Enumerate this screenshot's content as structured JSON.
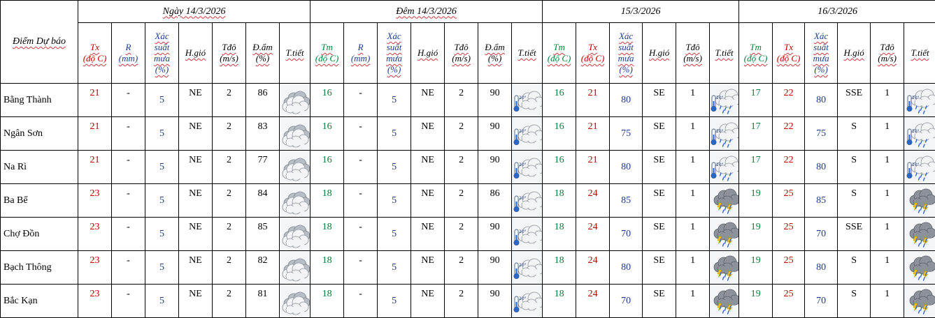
{
  "header": {
    "location": "Điểm Dự báo",
    "periods": [
      "Ngày 14/3/2026",
      "Đêm 14/3/2026",
      "15/3/2026",
      "16/3/2026"
    ]
  },
  "columns": {
    "day": [
      {
        "l1": "Tx",
        "l2": "(độ C)",
        "color": "#c00000"
      },
      {
        "l1": "R",
        "l2": "(mm)",
        "color": "#1f3b8f"
      },
      {
        "l1": "Xác",
        "l2": "suất",
        "l3": "mưa",
        "l4": "(%)",
        "color": "#1f3b8f"
      },
      {
        "l1": "H.gió",
        "color": "#000000"
      },
      {
        "l1": "Tđô",
        "l2": "(m/s)",
        "color": "#000000"
      },
      {
        "l1": "Đ.ẩm",
        "l2": "(%)",
        "color": "#000000"
      },
      {
        "l1": "T.tiết",
        "color": "#000000"
      }
    ],
    "night": [
      {
        "l1": "Tm",
        "l2": "(độ C)",
        "color": "#00803c"
      },
      {
        "l1": "R",
        "l2": "(mm)",
        "color": "#1f3b8f"
      },
      {
        "l1": "Xác",
        "l2": "suất",
        "l3": "mưa",
        "l4": "(%)",
        "color": "#1f3b8f"
      },
      {
        "l1": "H.gió",
        "color": "#000000"
      },
      {
        "l1": "Tđô",
        "l2": "(m/s)",
        "color": "#000000"
      },
      {
        "l1": "Đ.ẩm",
        "l2": "(%)",
        "color": "#000000"
      },
      {
        "l1": "T.tiết",
        "color": "#000000"
      }
    ],
    "ext": [
      {
        "l1": "Tm",
        "l2": "(độ C)",
        "color": "#00803c"
      },
      {
        "l1": "Tx",
        "l2": "(độ C)",
        "color": "#c00000"
      },
      {
        "l1": "Xác",
        "l2": "suất",
        "l3": "mưa",
        "l4": "(%)",
        "color": "#1f3b8f"
      },
      {
        "l1": "H.gió",
        "color": "#000000"
      },
      {
        "l1": "Tđô",
        "l2": "(m/s)",
        "color": "#000000"
      },
      {
        "l1": "T.tiết",
        "color": "#000000"
      }
    ]
  },
  "rows": [
    {
      "name": "Bằng Thành",
      "d": {
        "tx": "21",
        "r": "-",
        "pop": "5",
        "wind": "NE",
        "speed": "2",
        "hum": "86",
        "icon": "cloudy-icon"
      },
      "n": {
        "tm": "16",
        "r": "-",
        "pop": "5",
        "wind": "NE",
        "speed": "2",
        "hum": "90",
        "icon": "cloudy-cool-icon"
      },
      "d15": {
        "tm": "16",
        "tx": "21",
        "pop": "80",
        "wind": "SE",
        "speed": "1",
        "icon": "showers-cool-icon"
      },
      "d16": {
        "tm": "17",
        "tx": "22",
        "pop": "80",
        "wind": "SSE",
        "speed": "1",
        "icon": "showers-cool-icon"
      }
    },
    {
      "name": "Ngân Sơn",
      "d": {
        "tx": "21",
        "r": "-",
        "pop": "5",
        "wind": "NE",
        "speed": "2",
        "hum": "83",
        "icon": "cloudy-icon"
      },
      "n": {
        "tm": "16",
        "r": "-",
        "pop": "5",
        "wind": "NE",
        "speed": "2",
        "hum": "90",
        "icon": "cloudy-cool-icon"
      },
      "d15": {
        "tm": "16",
        "tx": "21",
        "pop": "75",
        "wind": "SE",
        "speed": "1",
        "icon": "showers-cool-icon"
      },
      "d16": {
        "tm": "17",
        "tx": "22",
        "pop": "75",
        "wind": "S",
        "speed": "1",
        "icon": "showers-cool-icon"
      }
    },
    {
      "name": "Na Rì",
      "d": {
        "tx": "21",
        "r": "-",
        "pop": "5",
        "wind": "NE",
        "speed": "2",
        "hum": "77",
        "icon": "cloudy-icon"
      },
      "n": {
        "tm": "16",
        "r": "-",
        "pop": "5",
        "wind": "NE",
        "speed": "2",
        "hum": "90",
        "icon": "cloudy-cool-icon"
      },
      "d15": {
        "tm": "16",
        "tx": "21",
        "pop": "80",
        "wind": "SE",
        "speed": "1",
        "icon": "showers-cool-icon"
      },
      "d16": {
        "tm": "17",
        "tx": "22",
        "pop": "80",
        "wind": "S",
        "speed": "1",
        "icon": "showers-cool-icon"
      }
    },
    {
      "name": "Ba Bể",
      "d": {
        "tx": "23",
        "r": "-",
        "pop": "5",
        "wind": "NE",
        "speed": "2",
        "hum": "84",
        "icon": "cloudy-icon"
      },
      "n": {
        "tm": "18",
        "r": "-",
        "pop": "5",
        "wind": "NE",
        "speed": "2",
        "hum": "86",
        "icon": "cloudy-cool-icon"
      },
      "d15": {
        "tm": "18",
        "tx": "24",
        "pop": "85",
        "wind": "SE",
        "speed": "1",
        "icon": "thunder-rain-icon"
      },
      "d16": {
        "tm": "19",
        "tx": "25",
        "pop": "85",
        "wind": "S",
        "speed": "1",
        "icon": "thunder-rain-icon"
      }
    },
    {
      "name": "Chợ Đồn",
      "d": {
        "tx": "23",
        "r": "-",
        "pop": "5",
        "wind": "NE",
        "speed": "2",
        "hum": "85",
        "icon": "cloudy-icon"
      },
      "n": {
        "tm": "18",
        "r": "-",
        "pop": "5",
        "wind": "NE",
        "speed": "2",
        "hum": "90",
        "icon": "cloudy-cool-icon"
      },
      "d15": {
        "tm": "18",
        "tx": "24",
        "pop": "70",
        "wind": "SE",
        "speed": "1",
        "icon": "thunder-rain-icon"
      },
      "d16": {
        "tm": "19",
        "tx": "25",
        "pop": "70",
        "wind": "SSE",
        "speed": "1",
        "icon": "thunder-rain-icon"
      }
    },
    {
      "name": "Bạch Thông",
      "d": {
        "tx": "23",
        "r": "-",
        "pop": "5",
        "wind": "NE",
        "speed": "2",
        "hum": "82",
        "icon": "cloudy-icon"
      },
      "n": {
        "tm": "18",
        "r": "-",
        "pop": "5",
        "wind": "NE",
        "speed": "2",
        "hum": "90",
        "icon": "cloudy-cool-icon"
      },
      "d15": {
        "tm": "18",
        "tx": "24",
        "pop": "80",
        "wind": "SE",
        "speed": "1",
        "icon": "thunder-rain-icon"
      },
      "d16": {
        "tm": "19",
        "tx": "25",
        "pop": "80",
        "wind": "S",
        "speed": "1",
        "icon": "thunder-rain-icon"
      }
    },
    {
      "name": "Bắc Kạn",
      "d": {
        "tx": "23",
        "r": "-",
        "pop": "5",
        "wind": "NE",
        "speed": "2",
        "hum": "81",
        "icon": "cloudy-icon"
      },
      "n": {
        "tm": "18",
        "r": "-",
        "pop": "5",
        "wind": "NE",
        "speed": "2",
        "hum": "90",
        "icon": "cloudy-cool-icon"
      },
      "d15": {
        "tm": "18",
        "tx": "24",
        "pop": "70",
        "wind": "SE",
        "speed": "1",
        "icon": "thunder-rain-icon"
      },
      "d16": {
        "tm": "19",
        "tx": "25",
        "pop": "70",
        "wind": "S",
        "speed": "1",
        "icon": "thunder-rain-icon"
      }
    }
  ],
  "icon_labels": {
    "thermometer": "20°"
  }
}
